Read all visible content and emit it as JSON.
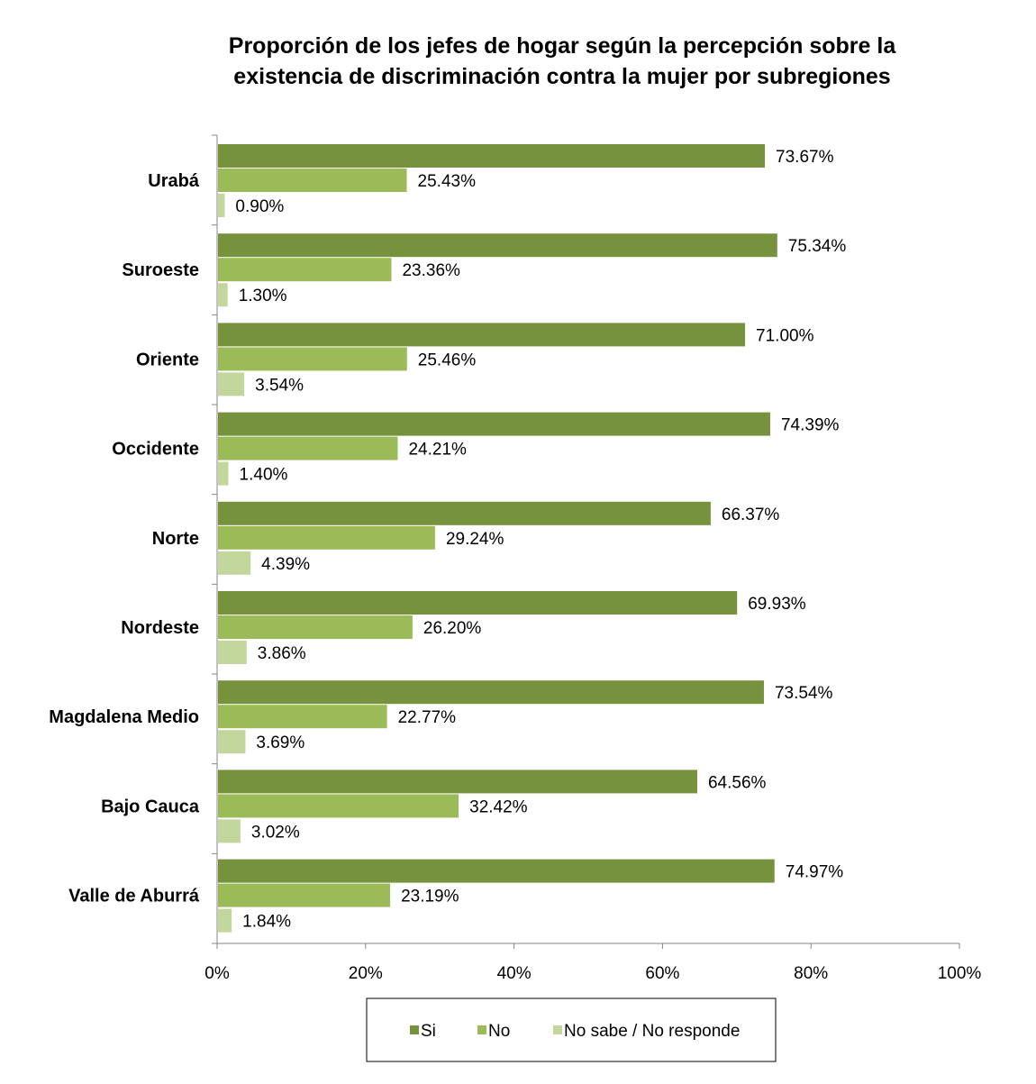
{
  "chart_data": {
    "type": "bar",
    "orientation": "horizontal",
    "title": "Proporción de los jefes de hogar según la percepción sobre la existencia de discriminación contra la mujer  por subregiones",
    "title_lines": [
      "Proporción de los jefes de hogar según la percepción sobre la",
      "existencia de discriminación contra la mujer  por subregiones"
    ],
    "categories": [
      "Urabá",
      "Suroeste",
      "Oriente",
      "Occidente",
      "Norte",
      "Nordeste",
      "Magdalena Medio",
      "Bajo Cauca",
      "Valle de Aburrá"
    ],
    "series": [
      {
        "name": "Si",
        "color": "#76923c",
        "values": [
          73.67,
          75.34,
          71.0,
          74.39,
          66.37,
          69.93,
          73.54,
          64.56,
          74.97
        ],
        "labels": [
          "73.67%",
          "75.34%",
          "71.00%",
          "74.39%",
          "66.37%",
          "69.93%",
          "73.54%",
          "64.56%",
          "74.97%"
        ]
      },
      {
        "name": "No",
        "color": "#9bbb59",
        "values": [
          25.43,
          23.36,
          25.46,
          24.21,
          29.24,
          26.2,
          22.77,
          32.42,
          23.19
        ],
        "labels": [
          "25.43%",
          "23.36%",
          "25.46%",
          "24.21%",
          "29.24%",
          "26.20%",
          "22.77%",
          "32.42%",
          "23.19%"
        ]
      },
      {
        "name": "No sabe / No responde",
        "color": "#c3d69b",
        "values": [
          0.9,
          1.3,
          3.54,
          1.4,
          4.39,
          3.86,
          3.69,
          3.02,
          1.84
        ],
        "labels": [
          "0.90%",
          "1.30%",
          "3.54%",
          "1.40%",
          "4.39%",
          "3.86%",
          "3.69%",
          "3.02%",
          "1.84%"
        ]
      }
    ],
    "xlim": [
      0,
      100
    ],
    "x_ticks": [
      0,
      20,
      40,
      60,
      80,
      100
    ],
    "x_tick_labels": [
      "0%",
      "20%",
      "40%",
      "60%",
      "80%",
      "100%"
    ],
    "xlabel": "",
    "ylabel": "",
    "grid": false,
    "legend_position": "bottom"
  }
}
